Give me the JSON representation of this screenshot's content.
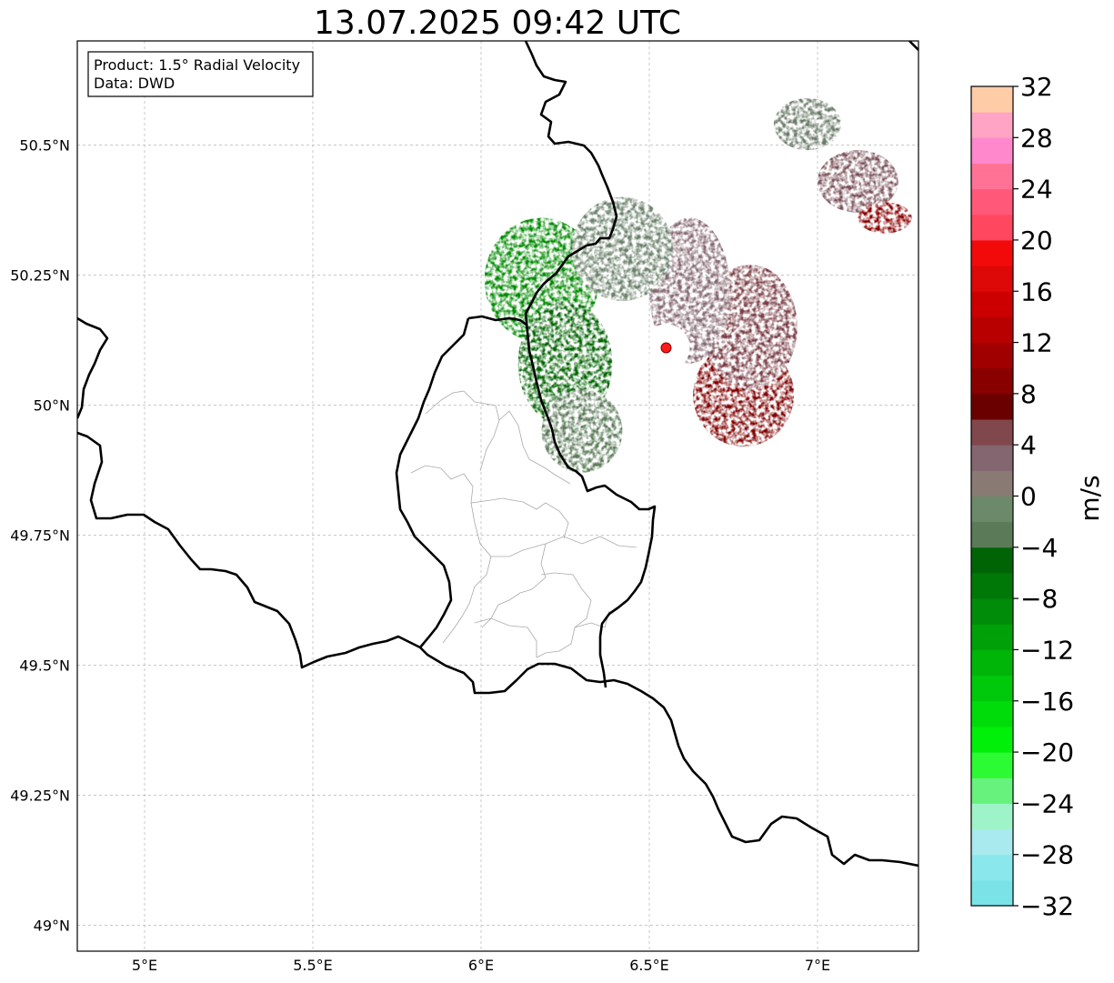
{
  "title": "13.07.2025 09:42 UTC",
  "info_box": {
    "product": "Product: 1.5° Radial Velocity",
    "data": "Data: DWD"
  },
  "map": {
    "lon_range": [
      4.8,
      7.3
    ],
    "lat_range": [
      48.95,
      50.7
    ],
    "lon_ticks": [
      {
        "value": 5.0,
        "label": "5°E"
      },
      {
        "value": 5.5,
        "label": "5.5°E"
      },
      {
        "value": 6.0,
        "label": "6°E"
      },
      {
        "value": 6.5,
        "label": "6.5°E"
      },
      {
        "value": 7.0,
        "label": "7°E"
      }
    ],
    "lat_ticks": [
      {
        "value": 49.0,
        "label": "49°N"
      },
      {
        "value": 49.25,
        "label": "49.25°N"
      },
      {
        "value": 49.5,
        "label": "49.5°N"
      },
      {
        "value": 49.75,
        "label": "49.75°N"
      },
      {
        "value": 50.0,
        "label": "50°N"
      },
      {
        "value": 50.25,
        "label": "50.25°N"
      },
      {
        "value": 50.5,
        "label": "50.5°N"
      }
    ],
    "gridlines": true,
    "radar_site": {
      "lon": 6.55,
      "lat": 50.11
    },
    "colors": {
      "border": "#000000",
      "admin": "#aaaaaa",
      "grid": "#b5b5b5",
      "site": "#ff1a1a"
    }
  },
  "colorbar": {
    "label": "m/s",
    "min": -32,
    "max": 32,
    "ticks": [
      {
        "value": 32,
        "label": "32"
      },
      {
        "value": 28,
        "label": "28"
      },
      {
        "value": 24,
        "label": "24"
      },
      {
        "value": 20,
        "label": "20"
      },
      {
        "value": 16,
        "label": "16"
      },
      {
        "value": 12,
        "label": "12"
      },
      {
        "value": 8,
        "label": "8"
      },
      {
        "value": 4,
        "label": "4"
      },
      {
        "value": 0,
        "label": "0"
      },
      {
        "value": -4,
        "label": "−4"
      },
      {
        "value": -8,
        "label": "−8"
      },
      {
        "value": -12,
        "label": "−12"
      },
      {
        "value": -16,
        "label": "−16"
      },
      {
        "value": -20,
        "label": "−20"
      },
      {
        "value": -24,
        "label": "−24"
      },
      {
        "value": -28,
        "label": "−28"
      },
      {
        "value": -32,
        "label": "−32"
      }
    ],
    "colors": [
      "#7ae3e8",
      "#8ae8ec",
      "#a8eaee",
      "#9ef4c8",
      "#66f27c",
      "#2cfa32",
      "#00f00a",
      "#00dc0a",
      "#00c80a",
      "#00b408",
      "#00a008",
      "#008c08",
      "#007808",
      "#006406",
      "#5a7a58",
      "#6c8a6a",
      "#8a7a74",
      "#846670",
      "#80484c",
      "#6a0000",
      "#880000",
      "#a00000",
      "#b80000",
      "#cc0000",
      "#dd0808",
      "#f20a0a",
      "#ff4860",
      "#ff5878",
      "#ff7296",
      "#ff88cc",
      "#ffa4c4",
      "#ffcca8"
    ]
  },
  "velocity_regions": [
    {
      "name": "outbound-strong",
      "color": "#800000",
      "lon": 6.78,
      "lat": 50.02,
      "rx": 0.15,
      "ry": 0.1
    },
    {
      "name": "outbound-moderate",
      "color": "#7a3c44",
      "lon": 6.8,
      "lat": 50.15,
      "rx": 0.14,
      "ry": 0.12
    },
    {
      "name": "outbound-weak",
      "color": "#846670",
      "lon": 6.62,
      "lat": 50.22,
      "rx": 0.12,
      "ry": 0.14
    },
    {
      "name": "inbound-strong",
      "color": "#008a00",
      "lon": 6.18,
      "lat": 50.24,
      "rx": 0.17,
      "ry": 0.12
    },
    {
      "name": "inbound-dark",
      "color": "#006400",
      "lon": 6.25,
      "lat": 50.08,
      "rx": 0.14,
      "ry": 0.12
    },
    {
      "name": "inbound-weak",
      "color": "#6a806a",
      "lon": 6.42,
      "lat": 50.3,
      "rx": 0.15,
      "ry": 0.1
    },
    {
      "name": "inbound-fringe",
      "color": "#5a7a58",
      "lon": 6.3,
      "lat": 49.95,
      "rx": 0.12,
      "ry": 0.08
    },
    {
      "name": "ne-cell-grey",
      "color": "#6a7a68",
      "lon": 6.97,
      "lat": 50.54,
      "rx": 0.1,
      "ry": 0.05
    },
    {
      "name": "ne-cell-mauve",
      "color": "#7a5058",
      "lon": 7.12,
      "lat": 50.43,
      "rx": 0.12,
      "ry": 0.06
    },
    {
      "name": "ne-cell-red",
      "color": "#8a0000",
      "lon": 7.2,
      "lat": 50.36,
      "rx": 0.08,
      "ry": 0.03
    }
  ]
}
